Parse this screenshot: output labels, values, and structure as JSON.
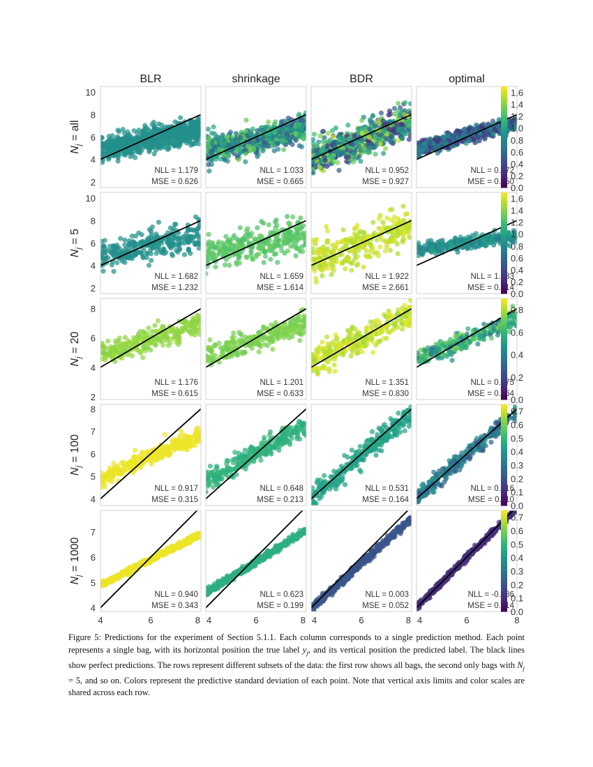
{
  "chart_data": {
    "type": "scatter",
    "title": "",
    "columns": [
      "BLR",
      "shrinkage",
      "BDR",
      "optimal"
    ],
    "xlabel": "",
    "xticks": [
      4,
      6,
      8
    ],
    "xlim": [
      4,
      8
    ],
    "reference_line": "y = x (perfect predictions)",
    "colormap": "viridis",
    "rows": [
      {
        "label": "N_j = all",
        "label_main": "N",
        "label_sub": "j",
        "label_rest": " = all",
        "ylim": [
          1.5,
          10.5
        ],
        "yticks": [
          2,
          4,
          6,
          8,
          10
        ],
        "colorbar_ticks": [
          "0.0",
          "0.2",
          "0.4",
          "0.6",
          "0.8",
          "1.0",
          "1.2",
          "1.4",
          "1.6"
        ],
        "clim": [
          0,
          1.7
        ],
        "panels": [
          {
            "method": "BLR",
            "nll": "1.179",
            "mse": "0.626",
            "slope": 0.45,
            "intercept": 3.05,
            "noise": 0.9,
            "std_mean": 0.85,
            "std_spread": 0.02,
            "n": 700
          },
          {
            "method": "shrinkage",
            "nll": "1.033",
            "mse": "0.665",
            "slope": 0.5,
            "intercept": 2.8,
            "noise": 0.95,
            "std_mean": 0.9,
            "std_spread": 0.45,
            "n": 700
          },
          {
            "method": "BDR",
            "nll": "0.952",
            "mse": "0.927",
            "slope": 0.85,
            "intercept": 0.6,
            "noise": 1.2,
            "std_mean": 0.9,
            "std_spread": 0.7,
            "n": 700
          },
          {
            "method": "optimal",
            "nll": "0.372",
            "mse": "0.350",
            "slope": 0.6,
            "intercept": 2.5,
            "noise": 0.5,
            "std_mean": 0.55,
            "std_spread": 0.4,
            "n": 700
          }
        ]
      },
      {
        "label": "N_j = 5",
        "label_main": "N",
        "label_sub": "j",
        "label_rest": " = 5",
        "ylim": [
          1.5,
          10.5
        ],
        "yticks": [
          2,
          4,
          6,
          8,
          10
        ],
        "colorbar_ticks": [
          "0.0",
          "0.2",
          "0.4",
          "0.6",
          "0.8",
          "1.0",
          "1.2",
          "1.4",
          "1.6"
        ],
        "clim": [
          0,
          1.7
        ],
        "panels": [
          {
            "method": "BLR",
            "nll": "1.682",
            "mse": "1.232",
            "slope": 0.45,
            "intercept": 3.1,
            "noise": 1.05,
            "std_mean": 0.85,
            "std_spread": 0.02,
            "n": 300
          },
          {
            "method": "shrinkage",
            "nll": "1.659",
            "mse": "1.614",
            "slope": 0.45,
            "intercept": 3.2,
            "noise": 1.15,
            "std_mean": 1.25,
            "std_spread": 0.05,
            "n": 300
          },
          {
            "method": "BDR",
            "nll": "1.922",
            "mse": "2.661",
            "slope": 0.7,
            "intercept": 1.8,
            "noise": 1.45,
            "std_mean": 1.55,
            "std_spread": 0.08,
            "n": 300
          },
          {
            "method": "optimal",
            "nll": "1.183",
            "mse": "0.814",
            "slope": 0.3,
            "intercept": 4.2,
            "noise": 0.45,
            "std_mean": 0.85,
            "std_spread": 0.15,
            "n": 300
          }
        ]
      },
      {
        "label": "N_j = 20",
        "label_main": "N",
        "label_sub": "j",
        "label_rest": " = 20",
        "ylim": [
          1.8,
          8.7
        ],
        "yticks": [
          2,
          4,
          6,
          8
        ],
        "colorbar_ticks": [
          "0.0",
          "0.2",
          "0.4",
          "0.6",
          "0.8"
        ],
        "clim": [
          0,
          0.9
        ],
        "panels": [
          {
            "method": "BLR",
            "nll": "1.176",
            "mse": "0.615",
            "slope": 0.5,
            "intercept": 2.9,
            "noise": 0.6,
            "std_mean": 0.75,
            "std_spread": 0.02,
            "n": 280
          },
          {
            "method": "shrinkage",
            "nll": "1.201",
            "mse": "0.633",
            "slope": 0.55,
            "intercept": 2.6,
            "noise": 0.65,
            "std_mean": 0.72,
            "std_spread": 0.02,
            "n": 280
          },
          {
            "method": "BDR",
            "nll": "1.351",
            "mse": "0.830",
            "slope": 0.8,
            "intercept": 1.2,
            "noise": 0.85,
            "std_mean": 0.82,
            "std_spread": 0.05,
            "n": 280
          },
          {
            "method": "optimal",
            "nll": "0.875",
            "mse": "0.464",
            "slope": 0.7,
            "intercept": 1.7,
            "noise": 0.5,
            "std_mean": 0.55,
            "std_spread": 0.2,
            "n": 280
          }
        ]
      },
      {
        "label": "N_j = 100",
        "label_main": "N",
        "label_sub": "j",
        "label_rest": " = 100",
        "ylim": [
          3.7,
          8.2
        ],
        "yticks": [
          4,
          5,
          6,
          7,
          8
        ],
        "colorbar_ticks": [
          "0.0",
          "0.1",
          "0.2",
          "0.3",
          "0.4",
          "0.5",
          "0.6",
          "0.7"
        ],
        "clim": [
          0,
          0.75
        ],
        "panels": [
          {
            "method": "BLR",
            "nll": "0.917",
            "mse": "0.315",
            "slope": 0.5,
            "intercept": 2.9,
            "noise": 0.3,
            "std_mean": 0.73,
            "std_spread": 0.0,
            "n": 300
          },
          {
            "method": "shrinkage",
            "nll": "0.648",
            "mse": "0.213",
            "slope": 0.62,
            "intercept": 2.3,
            "noise": 0.35,
            "std_mean": 0.48,
            "std_spread": 0.02,
            "n": 300
          },
          {
            "method": "BDR",
            "nll": "0.531",
            "mse": "0.164",
            "slope": 0.95,
            "intercept": 0.2,
            "noise": 0.4,
            "std_mean": 0.43,
            "std_spread": 0.02,
            "n": 300
          },
          {
            "method": "optimal",
            "nll": "0.216",
            "mse": "0.110",
            "slope": 0.95,
            "intercept": 0.25,
            "noise": 0.3,
            "std_mean": 0.3,
            "std_spread": 0.12,
            "n": 300
          }
        ]
      },
      {
        "label": "N_j = 1000",
        "label_main": "N",
        "label_sub": "j",
        "label_rest": " = 1000",
        "ylim": [
          3.85,
          7.85
        ],
        "yticks": [
          4,
          5,
          6,
          7
        ],
        "colorbar_ticks": [
          "0.0",
          "0.1",
          "0.2",
          "0.3",
          "0.4",
          "0.5",
          "0.6",
          "0.7"
        ],
        "clim": [
          0,
          0.75
        ],
        "panels": [
          {
            "method": "BLR",
            "nll": "0.940",
            "mse": "0.343",
            "slope": 0.5,
            "intercept": 2.9,
            "noise": 0.09,
            "std_mean": 0.73,
            "std_spread": 0.0,
            "n": 500
          },
          {
            "method": "shrinkage",
            "nll": "0.623",
            "mse": "0.199",
            "slope": 0.62,
            "intercept": 2.1,
            "noise": 0.1,
            "std_mean": 0.47,
            "std_spread": 0.0,
            "n": 500
          },
          {
            "method": "BDR",
            "nll": "0.003",
            "mse": "0.052",
            "slope": 0.9,
            "intercept": 0.35,
            "noise": 0.12,
            "std_mean": 0.2,
            "std_spread": 0.02,
            "n": 500
          },
          {
            "method": "optimal",
            "nll": "-0.786",
            "mse": "0.014",
            "slope": 0.98,
            "intercept": 0.1,
            "noise": 0.1,
            "std_mean": 0.1,
            "std_spread": 0.02,
            "n": 500
          }
        ]
      }
    ]
  },
  "caption": {
    "part1": "Figure 5: Predictions for the experiment of Section 5.1.1. Each column corresponds to a single prediction method. Each point represents a single bag, with its horizontal position the true label ",
    "yj_main": "y",
    "yj_sub": "j",
    "part2": ", and its vertical position the predicted label. The black lines show perfect predictions. The rows represent different subsets of the data: the first row shows all bags, the second only bags with ",
    "nj_main": "N",
    "nj_sub": "j",
    "part3": " = 5, and so on. Colors represent the predictive standard deviation of each point. Note that vertical axis limits and color scales are shared across each row."
  },
  "metric_labels": {
    "nll": "NLL =",
    "mse": "MSE ="
  }
}
